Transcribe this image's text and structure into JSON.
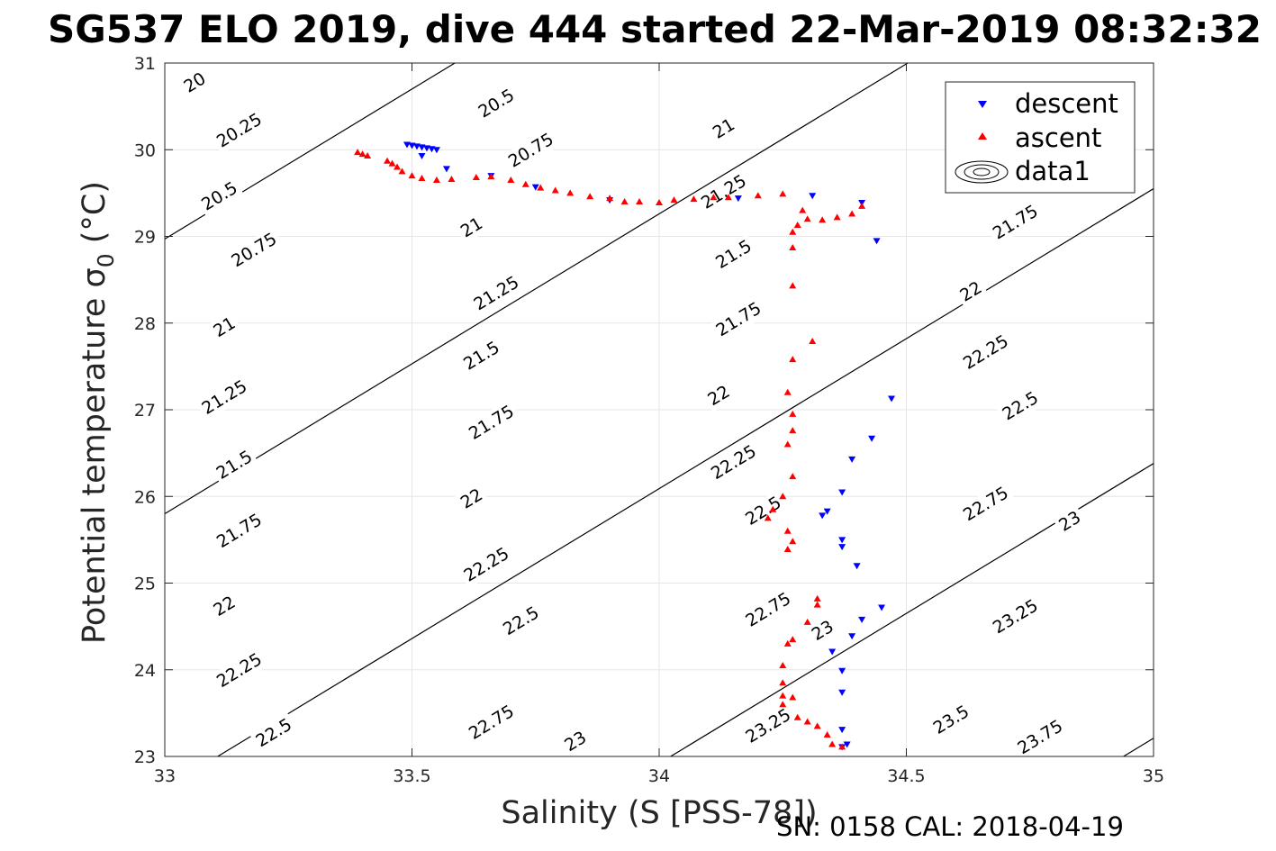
{
  "chart_data": {
    "type": "scatter",
    "title": "SG537 ELO 2019, dive 444 started 22-Mar-2019 08:32:32",
    "xlabel": "Salinity (S [PSS-78])",
    "ylabel": "Potential temperature σ",
    "ylabel_sub": "0",
    "ylabel_unit": "(°C)",
    "footer": "SN: 0158  CAL: 2018-04-19",
    "xlim": [
      33,
      35
    ],
    "ylim": [
      23,
      31
    ],
    "xticks": [
      33,
      33.5,
      34,
      34.5,
      35
    ],
    "yticks": [
      23,
      24,
      25,
      26,
      27,
      28,
      29,
      30,
      31
    ],
    "grid": true,
    "legend_position": "top-right",
    "legend": [
      "descent",
      "ascent",
      "data1"
    ],
    "contours": {
      "levels": [
        20,
        20.25,
        20.5,
        20.75,
        21,
        21.25,
        21.5,
        21.75,
        22,
        22.25,
        22.5,
        22.75,
        23,
        23.25,
        23.5,
        23.75
      ],
      "labels": [
        {
          "text": "20",
          "s": 33.06,
          "t": 30.78
        },
        {
          "text": "20.25",
          "s": 33.15,
          "t": 30.23
        },
        {
          "text": "20.5",
          "s": 33.11,
          "t": 29.47
        },
        {
          "text": "20.75",
          "s": 33.18,
          "t": 28.85
        },
        {
          "text": "21",
          "s": 33.12,
          "t": 27.96
        },
        {
          "text": "21.25",
          "s": 33.12,
          "t": 27.15
        },
        {
          "text": "21.5",
          "s": 33.14,
          "t": 26.37
        },
        {
          "text": "21.75",
          "s": 33.15,
          "t": 25.61
        },
        {
          "text": "22",
          "s": 33.12,
          "t": 24.74
        },
        {
          "text": "22.25",
          "s": 33.15,
          "t": 24.0
        },
        {
          "text": "22.5",
          "s": 33.22,
          "t": 23.28
        },
        {
          "text": "20.5",
          "s": 33.67,
          "t": 30.54
        },
        {
          "text": "20.75",
          "s": 33.74,
          "t": 30.0
        },
        {
          "text": "21",
          "s": 33.62,
          "t": 29.11
        },
        {
          "text": "21.25",
          "s": 33.67,
          "t": 28.35
        },
        {
          "text": "21.5",
          "s": 33.64,
          "t": 27.63
        },
        {
          "text": "21.75",
          "s": 33.66,
          "t": 26.86
        },
        {
          "text": "22",
          "s": 33.62,
          "t": 25.98
        },
        {
          "text": "22.25",
          "s": 33.65,
          "t": 25.22
        },
        {
          "text": "22.5",
          "s": 33.72,
          "t": 24.57
        },
        {
          "text": "22.75",
          "s": 33.66,
          "t": 23.4
        },
        {
          "text": "23",
          "s": 33.83,
          "t": 23.18
        },
        {
          "text": "21",
          "s": 34.13,
          "t": 30.25
        },
        {
          "text": "21.25",
          "s": 34.13,
          "t": 29.52
        },
        {
          "text": "21.5",
          "s": 34.15,
          "t": 28.8
        },
        {
          "text": "21.75",
          "s": 34.16,
          "t": 28.05
        },
        {
          "text": "22",
          "s": 34.12,
          "t": 27.17
        },
        {
          "text": "22.25",
          "s": 34.15,
          "t": 26.4
        },
        {
          "text": "22.5",
          "s": 34.21,
          "t": 25.84
        },
        {
          "text": "22.75",
          "s": 34.22,
          "t": 24.7
        },
        {
          "text": "23",
          "s": 34.33,
          "t": 24.46
        },
        {
          "text": "23.25",
          "s": 34.22,
          "t": 23.36
        },
        {
          "text": "21.75",
          "s": 34.72,
          "t": 29.17
        },
        {
          "text": "22",
          "s": 34.63,
          "t": 28.37
        },
        {
          "text": "22.25",
          "s": 34.66,
          "t": 27.67
        },
        {
          "text": "22.5",
          "s": 34.73,
          "t": 27.05
        },
        {
          "text": "22.75",
          "s": 34.66,
          "t": 25.92
        },
        {
          "text": "23",
          "s": 34.83,
          "t": 25.72
        },
        {
          "text": "23.25",
          "s": 34.72,
          "t": 24.62
        },
        {
          "text": "23.5",
          "s": 34.59,
          "t": 23.43
        },
        {
          "text": "23.75",
          "s": 34.77,
          "t": 23.23
        }
      ]
    },
    "series": [
      {
        "name": "descent",
        "marker": "triangle-down",
        "color": "#0000ff",
        "points": [
          [
            33.49,
            30.06
          ],
          [
            33.5,
            30.05
          ],
          [
            33.51,
            30.04
          ],
          [
            33.52,
            30.03
          ],
          [
            33.53,
            30.02
          ],
          [
            33.54,
            30.01
          ],
          [
            33.55,
            30.0
          ],
          [
            33.52,
            29.93
          ],
          [
            33.57,
            29.78
          ],
          [
            33.66,
            29.7
          ],
          [
            33.75,
            29.57
          ],
          [
            33.9,
            29.42
          ],
          [
            34.16,
            29.44
          ],
          [
            34.31,
            29.47
          ],
          [
            34.41,
            29.39
          ],
          [
            34.44,
            28.95
          ],
          [
            34.47,
            27.13
          ],
          [
            34.43,
            26.67
          ],
          [
            34.39,
            26.43
          ],
          [
            34.37,
            26.05
          ],
          [
            34.33,
            25.78
          ],
          [
            34.34,
            25.83
          ],
          [
            34.37,
            25.5
          ],
          [
            34.37,
            25.42
          ],
          [
            34.4,
            25.2
          ],
          [
            34.45,
            24.72
          ],
          [
            34.41,
            24.58
          ],
          [
            34.39,
            24.39
          ],
          [
            34.35,
            24.21
          ],
          [
            34.37,
            23.99
          ],
          [
            34.37,
            23.74
          ],
          [
            34.37,
            23.31
          ],
          [
            34.38,
            23.14
          ],
          [
            34.37,
            23.11
          ]
        ]
      },
      {
        "name": "ascent",
        "marker": "triangle-up",
        "color": "#ff0000",
        "points": [
          [
            33.39,
            29.97
          ],
          [
            33.4,
            29.95
          ],
          [
            33.41,
            29.93
          ],
          [
            33.45,
            29.87
          ],
          [
            33.46,
            29.84
          ],
          [
            33.47,
            29.8
          ],
          [
            33.48,
            29.75
          ],
          [
            33.5,
            29.7
          ],
          [
            33.52,
            29.67
          ],
          [
            33.55,
            29.65
          ],
          [
            33.58,
            29.66
          ],
          [
            33.63,
            29.68
          ],
          [
            33.66,
            29.69
          ],
          [
            33.7,
            29.65
          ],
          [
            33.73,
            29.6
          ],
          [
            33.76,
            29.56
          ],
          [
            33.79,
            29.53
          ],
          [
            33.82,
            29.5
          ],
          [
            33.86,
            29.46
          ],
          [
            33.9,
            29.44
          ],
          [
            33.93,
            29.4
          ],
          [
            33.96,
            29.4
          ],
          [
            34.0,
            29.39
          ],
          [
            34.03,
            29.42
          ],
          [
            34.07,
            29.43
          ],
          [
            34.11,
            29.45
          ],
          [
            34.14,
            29.45
          ],
          [
            34.2,
            29.47
          ],
          [
            34.25,
            29.49
          ],
          [
            34.29,
            29.3
          ],
          [
            34.3,
            29.2
          ],
          [
            34.33,
            29.19
          ],
          [
            34.36,
            29.22
          ],
          [
            34.39,
            29.26
          ],
          [
            34.41,
            29.35
          ],
          [
            34.28,
            29.13
          ],
          [
            34.27,
            29.05
          ],
          [
            34.27,
            28.87
          ],
          [
            34.27,
            28.43
          ],
          [
            34.31,
            27.79
          ],
          [
            34.27,
            27.58
          ],
          [
            34.26,
            27.2
          ],
          [
            34.27,
            26.95
          ],
          [
            34.27,
            26.76
          ],
          [
            34.26,
            26.6
          ],
          [
            34.27,
            26.23
          ],
          [
            34.25,
            26.0
          ],
          [
            34.23,
            25.85
          ],
          [
            34.22,
            25.75
          ],
          [
            34.26,
            25.6
          ],
          [
            34.27,
            25.48
          ],
          [
            34.26,
            25.39
          ],
          [
            34.26,
            24.3
          ],
          [
            34.27,
            24.35
          ],
          [
            34.3,
            24.55
          ],
          [
            34.32,
            24.75
          ],
          [
            34.32,
            24.82
          ],
          [
            34.25,
            24.05
          ],
          [
            34.25,
            23.85
          ],
          [
            34.25,
            23.7
          ],
          [
            34.25,
            23.6
          ],
          [
            34.27,
            23.68
          ],
          [
            34.28,
            23.45
          ],
          [
            34.3,
            23.4
          ],
          [
            34.32,
            23.35
          ],
          [
            34.34,
            23.25
          ],
          [
            34.35,
            23.14
          ],
          [
            34.37,
            23.11
          ]
        ]
      }
    ]
  }
}
